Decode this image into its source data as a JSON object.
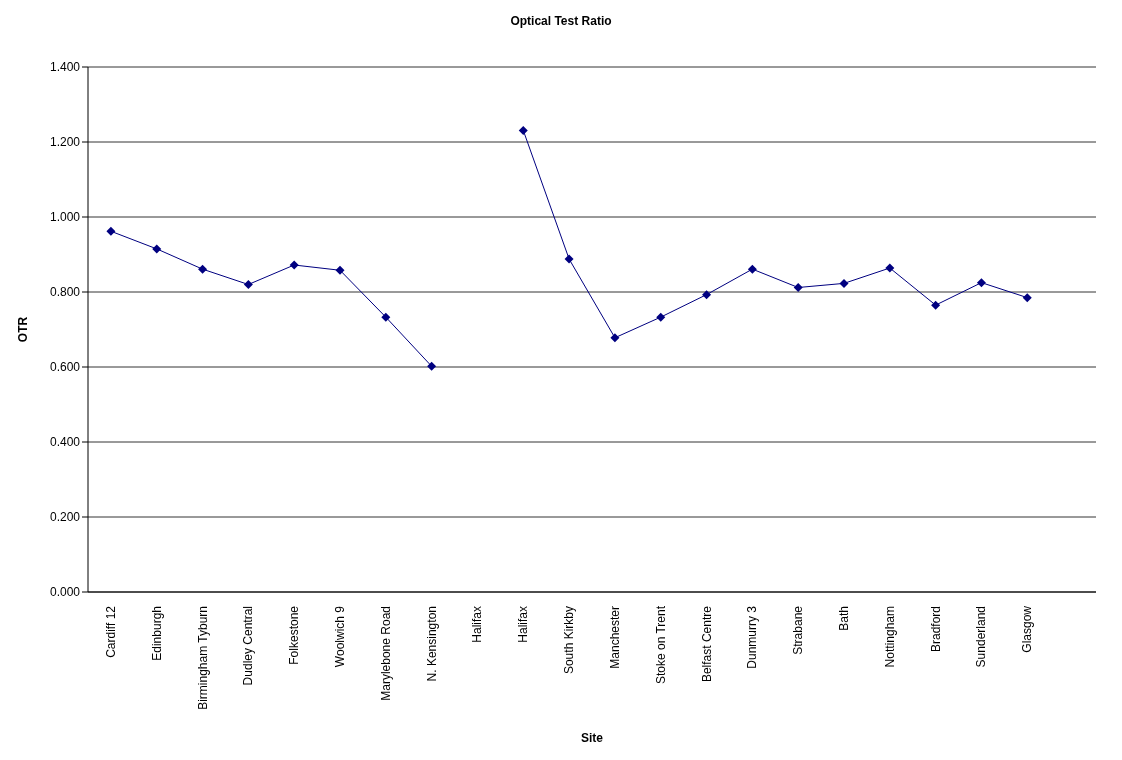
{
  "chart_data": {
    "type": "line",
    "title": "Optical Test Ratio",
    "xlabel": "Site",
    "ylabel": "OTR",
    "categories": [
      "Cardiff 12",
      "Edinburgh",
      "Birmingham Tyburn",
      "Dudley Central",
      "Folkestone",
      "Woolwich 9",
      "Marylebone Road",
      "N. Kensington",
      "Halifax",
      "Halifax",
      "South Kirkby",
      "Manchester",
      "Stoke on Trent",
      "Belfast Centre",
      "Dunmurry 3",
      "Strabane",
      "Bath",
      "Nottingham",
      "Bradford",
      "Sunderland",
      "Glasgow",
      null
    ],
    "series": [
      {
        "color": "#000080",
        "values": [
          0.962,
          0.915,
          0.861,
          0.82,
          0.872,
          0.858,
          0.733,
          0.602,
          null,
          1.231,
          0.888,
          0.678,
          0.733,
          0.793,
          0.861,
          0.812,
          0.823,
          0.864,
          0.765,
          0.825,
          0.785,
          null
        ]
      }
    ],
    "ylim": [
      0,
      1.4
    ],
    "yticks": [
      {
        "value": 0,
        "label": "0.000"
      },
      {
        "value": 0.2,
        "label": "0.200"
      },
      {
        "value": 0.4,
        "label": "0.400"
      },
      {
        "value": 0.6,
        "label": "0.600"
      },
      {
        "value": 0.8,
        "label": "0.800"
      },
      {
        "value": 1,
        "label": "1.000"
      },
      {
        "value": 1.2,
        "label": "1.200"
      },
      {
        "value": 1.4,
        "label": "1.400"
      }
    ],
    "grid": "y",
    "marker": "diamond",
    "line_style": "solid"
  }
}
